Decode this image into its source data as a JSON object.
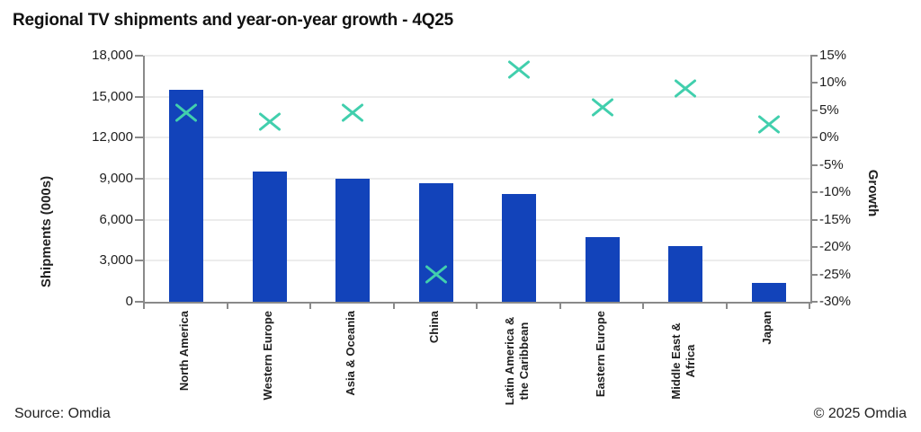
{
  "footer": {
    "source": "Source: Omdia",
    "copyright": "© 2025 Omdia"
  },
  "colors": {
    "bar_blue": "#1243ba",
    "marker_teal": "#41cfad"
  },
  "chart_data": {
    "type": "bar",
    "title": "Regional TV shipments and year-on-year growth - 4Q25",
    "categories": [
      "North America",
      "Western Europe",
      "Asia & Oceania",
      "China",
      "Latin America &\nthe Caribbean",
      "Eastern Europe",
      "Middle East &\nAfrica",
      "Japan"
    ],
    "series": [
      {
        "name": "Shipments (000s)",
        "type": "bar",
        "axis": "left",
        "color": "#1243ba",
        "values": [
          15500,
          9500,
          9000,
          8700,
          7900,
          4700,
          4100,
          1400
        ]
      },
      {
        "name": "Growth",
        "type": "scatter",
        "marker": "x",
        "axis": "right",
        "color": "#41cfad",
        "values": [
          4.5,
          3,
          4.5,
          -25,
          12.5,
          5.5,
          9,
          2.5
        ]
      }
    ],
    "left_axis": {
      "label": "Shipments (000s)",
      "min": 0,
      "max": 18000,
      "step": 3000,
      "ticks": [
        "18,000",
        "15,000",
        "12,000",
        "9,000",
        "6,000",
        "3,000",
        "0"
      ]
    },
    "right_axis": {
      "label": "Growth",
      "min": -30,
      "max": 15,
      "step": 5,
      "ticks": [
        "15%",
        "10%",
        "5%",
        "0%",
        "-5%",
        "-10%",
        "-15%",
        "-20%",
        "-25%",
        "-30%"
      ]
    },
    "legend": "none",
    "grid": "horizontal"
  }
}
